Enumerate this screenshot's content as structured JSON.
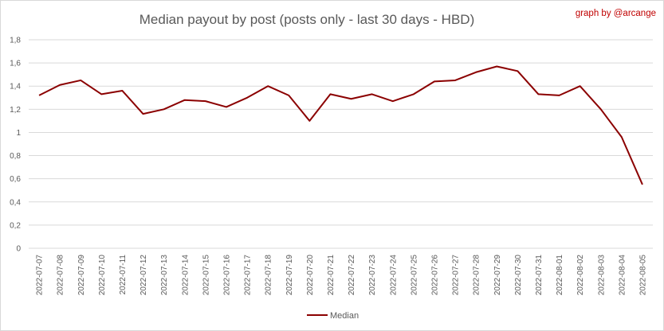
{
  "colors": {
    "series": "#8b0000",
    "grid": "#d9d9d9",
    "text": "#595959",
    "credit": "#c00000"
  },
  "chart_data": {
    "type": "line",
    "title": "Median payout by post (posts only - last 30 days - HBD)",
    "credit": "graph by @arcange",
    "xlabel": "",
    "ylabel": "",
    "ylim": [
      0,
      1.8
    ],
    "yticks": [
      "0",
      "0,2",
      "0,4",
      "0,6",
      "0,8",
      "1",
      "1,2",
      "1,4",
      "1,6",
      "1,8"
    ],
    "grid": "horizontal",
    "legend_position": "bottom",
    "categories": [
      "2022-07-07",
      "2022-07-08",
      "2022-07-09",
      "2022-07-10",
      "2022-07-11",
      "2022-07-12",
      "2022-07-13",
      "2022-07-14",
      "2022-07-15",
      "2022-07-16",
      "2022-07-17",
      "2022-07-18",
      "2022-07-19",
      "2022-07-20",
      "2022-07-21",
      "2022-07-22",
      "2022-07-23",
      "2022-07-24",
      "2022-07-25",
      "2022-07-26",
      "2022-07-27",
      "2022-07-28",
      "2022-07-29",
      "2022-07-30",
      "2022-07-31",
      "2022-08-01",
      "2022-08-02",
      "2022-08-03",
      "2022-08-04",
      "2022-08-05"
    ],
    "series": [
      {
        "name": "Median",
        "values": [
          1.32,
          1.41,
          1.45,
          1.33,
          1.36,
          1.16,
          1.2,
          1.28,
          1.27,
          1.22,
          1.3,
          1.4,
          1.32,
          1.1,
          1.33,
          1.29,
          1.33,
          1.27,
          1.33,
          1.44,
          1.45,
          1.52,
          1.57,
          1.53,
          1.33,
          1.32,
          1.4,
          1.2,
          0.96,
          0.55
        ]
      }
    ]
  }
}
